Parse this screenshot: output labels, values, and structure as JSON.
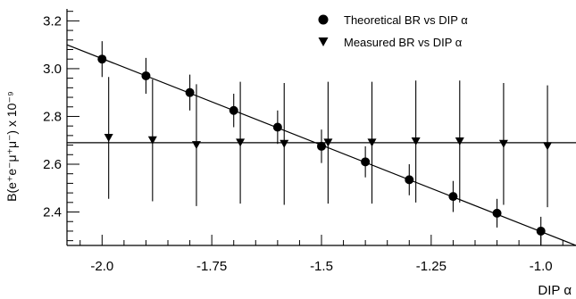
{
  "chart_data": {
    "type": "scatter",
    "title": "",
    "xlabel": "DIP α",
    "ylabel": "B(e⁺e⁻μ⁺μ⁻) x 10⁻⁹",
    "xlim": [
      -2.08,
      -0.92
    ],
    "ylim": [
      2.26,
      3.25
    ],
    "x_ticks": [
      -2.0,
      -1.75,
      -1.5,
      -1.25,
      -1.0
    ],
    "x_tick_labels": [
      "-2.0",
      "-1.75",
      "-1.5",
      "-1.25",
      "-1.0"
    ],
    "y_ticks": [
      2.4,
      2.6,
      2.8,
      3.0,
      3.2
    ],
    "y_tick_labels": [
      "2.4",
      "2.6",
      "2.8",
      "3.0",
      "3.2"
    ],
    "legend_position": "top-right",
    "series": [
      {
        "name": "Theoretical BR vs DIP  α",
        "marker": "circle",
        "color": "#000000",
        "points": [
          {
            "x": -2.0,
            "y": 3.04,
            "err": 0.075
          },
          {
            "x": -1.9,
            "y": 2.97,
            "err": 0.075
          },
          {
            "x": -1.8,
            "y": 2.9,
            "err": 0.075
          },
          {
            "x": -1.7,
            "y": 2.825,
            "err": 0.07
          },
          {
            "x": -1.6,
            "y": 2.755,
            "err": 0.07
          },
          {
            "x": -1.5,
            "y": 2.675,
            "err": 0.07
          },
          {
            "x": -1.4,
            "y": 2.61,
            "err": 0.065
          },
          {
            "x": -1.3,
            "y": 2.535,
            "err": 0.065
          },
          {
            "x": -1.2,
            "y": 2.465,
            "err": 0.065
          },
          {
            "x": -1.1,
            "y": 2.395,
            "err": 0.06
          },
          {
            "x": -1.0,
            "y": 2.32,
            "err": 0.06
          }
        ],
        "fit_line": {
          "x": [
            -2.08,
            -0.92
          ],
          "y": [
            3.1,
            2.26
          ]
        }
      },
      {
        "name": "Measured BR vs DIP  α",
        "marker": "triangle-down",
        "color": "#000000",
        "points": [
          {
            "x": -1.985,
            "y": 2.71,
            "err": 0.255
          },
          {
            "x": -1.885,
            "y": 2.7,
            "err": 0.255
          },
          {
            "x": -1.785,
            "y": 2.68,
            "err": 0.255
          },
          {
            "x": -1.685,
            "y": 2.69,
            "err": 0.255
          },
          {
            "x": -1.585,
            "y": 2.685,
            "err": 0.255
          },
          {
            "x": -1.485,
            "y": 2.69,
            "err": 0.255
          },
          {
            "x": -1.385,
            "y": 2.69,
            "err": 0.255
          },
          {
            "x": -1.285,
            "y": 2.695,
            "err": 0.255
          },
          {
            "x": -1.185,
            "y": 2.695,
            "err": 0.255
          },
          {
            "x": -1.085,
            "y": 2.685,
            "err": 0.255
          },
          {
            "x": -0.985,
            "y": 2.675,
            "err": 0.255
          }
        ],
        "fit_line": {
          "x": [
            -2.08,
            -0.92
          ],
          "y": [
            2.69,
            2.69
          ]
        }
      }
    ]
  }
}
